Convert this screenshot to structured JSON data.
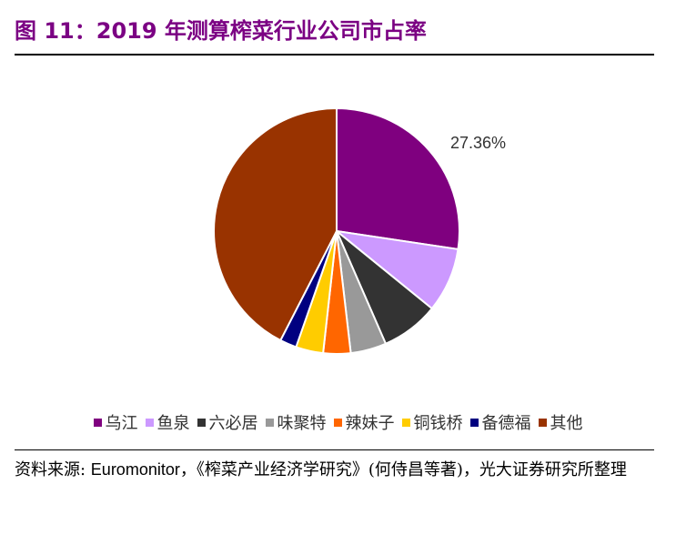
{
  "figure": {
    "title": "图 11：2019 年测算榨菜行业公司市占率"
  },
  "chart_data": {
    "type": "pie",
    "title": "",
    "series": [
      {
        "name": "乌江",
        "value": 27.36,
        "color": "#7f007f"
      },
      {
        "name": "鱼泉",
        "value": 8.5,
        "color": "#cc99ff"
      },
      {
        "name": "六必居",
        "value": 7.6,
        "color": "#333333"
      },
      {
        "name": "味聚特",
        "value": 4.7,
        "color": "#999999"
      },
      {
        "name": "辣妹子",
        "value": 3.6,
        "color": "#ff6600"
      },
      {
        "name": "铜钱桥",
        "value": 3.6,
        "color": "#ffcc00"
      },
      {
        "name": "备德福",
        "value": 2.2,
        "color": "#000080"
      },
      {
        "name": "其他",
        "value": 42.44,
        "color": "#993300"
      }
    ],
    "data_labels": [
      {
        "series": "乌江",
        "text": "27.36%"
      }
    ],
    "legend_position": "bottom"
  },
  "source": {
    "prefix": "资料来源: ",
    "org": "Euromonitor",
    "rest": "，《榨菜产业经济学研究》(何侍昌等著)，光大证券研究所整理"
  }
}
